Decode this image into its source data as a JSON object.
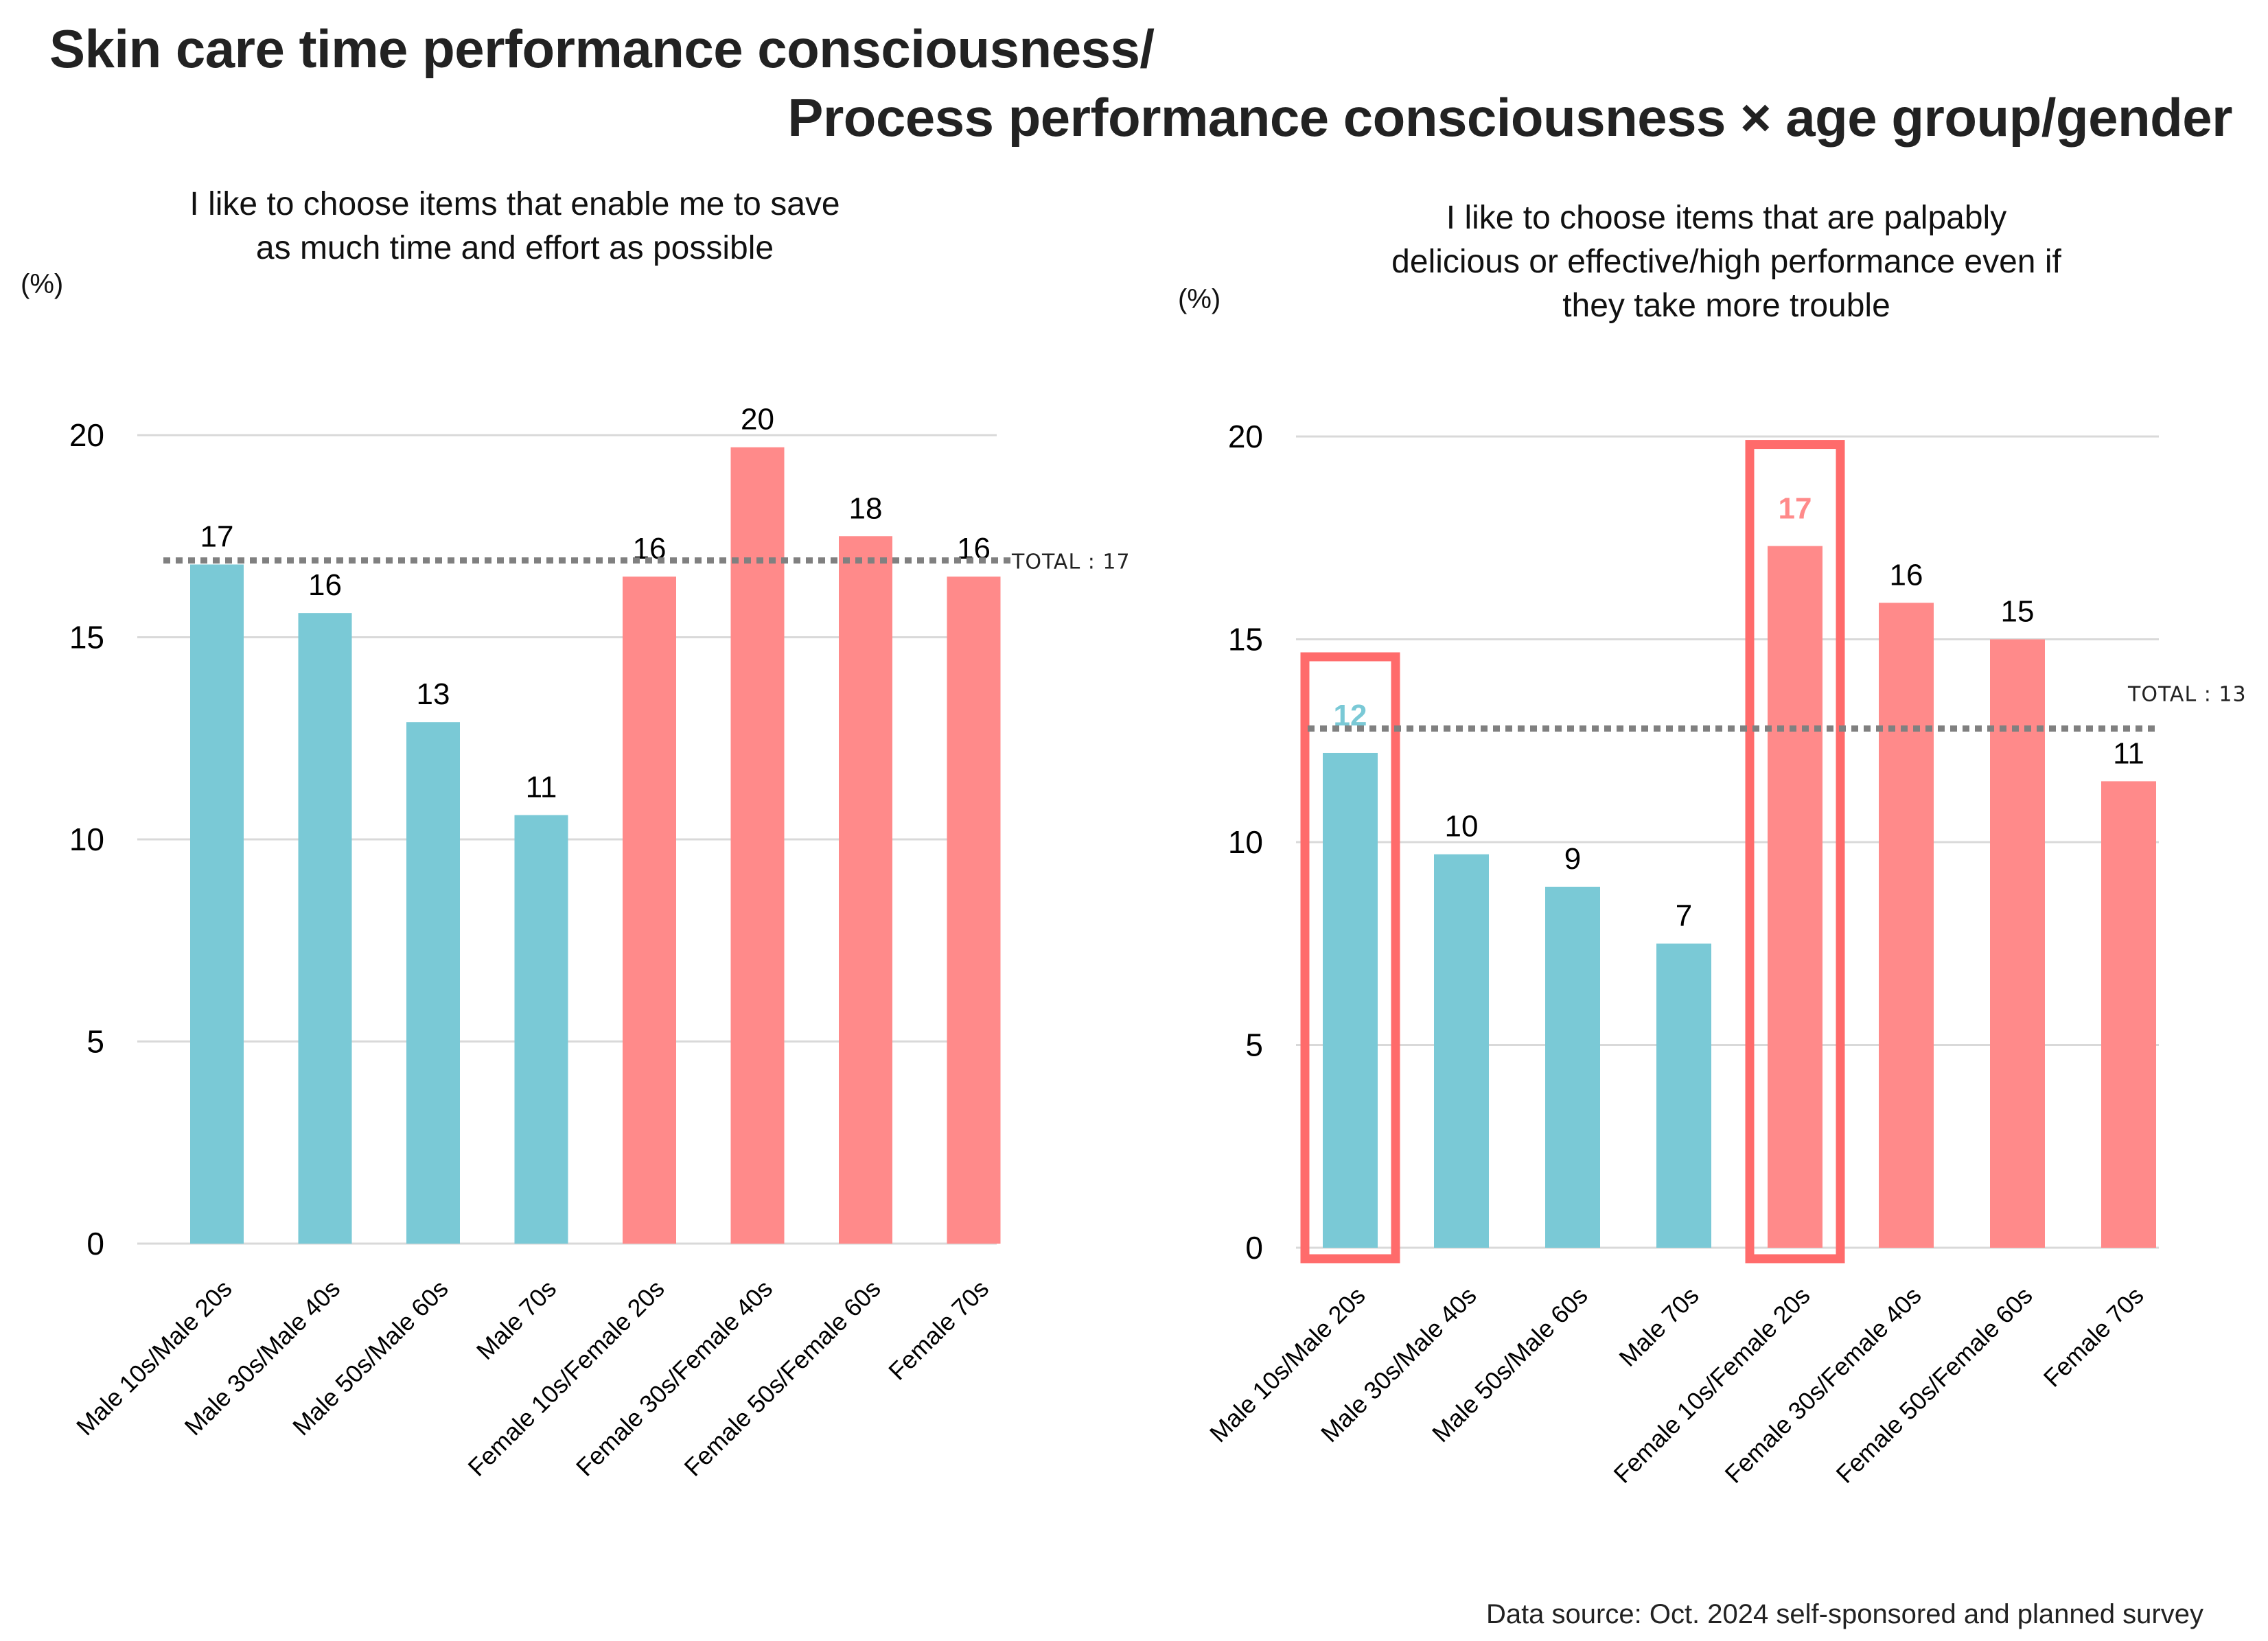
{
  "title": {
    "line1": "Skin care time performance consciousness/",
    "line2": "Process performance consciousness × age group/gender"
  },
  "source": "Data source: Oct. 2024 self-sponsored and planned survey",
  "colors": {
    "male": "#7ac9d6",
    "female": "#ff8a8a",
    "highlight_box": "#ff6b6b",
    "total_line": "#808080",
    "grid": "#d9d9d9",
    "text": "#000000"
  },
  "chart_data": [
    {
      "type": "bar",
      "title": "I like to choose items that enable me to save as much time and effort as possible",
      "title_lines": [
        "I like to choose items that enable me to save",
        "as much time and effort as possible"
      ],
      "ylabel": "(%)",
      "xlabel": "",
      "ylim": [
        0,
        20
      ],
      "yticks": [
        0,
        5,
        10,
        15,
        20
      ],
      "grid": true,
      "categories": [
        "Male 10s/Male 20s",
        "Male 30s/Male 40s",
        "Male 50s/Male 60s",
        "Male 70s",
        "Female 10s/Female 20s",
        "Female 30s/Female 40s",
        "Female 50s/Female 60s",
        "Female 70s"
      ],
      "values": [
        16.8,
        15.6,
        12.9,
        10.6,
        16.5,
        19.7,
        17.5,
        16.5
      ],
      "data_labels": [
        "17",
        "16",
        "13",
        "11",
        "16",
        "20",
        "18",
        "16"
      ],
      "groups": [
        "male",
        "male",
        "male",
        "male",
        "female",
        "female",
        "female",
        "female"
      ],
      "reference_line": {
        "label": "TOTAL : 17",
        "value": 16.9,
        "style": "dotted"
      },
      "highlighted": []
    },
    {
      "type": "bar",
      "title": "I like to choose items that are palpably delicious or effective/high performance even if they take more trouble",
      "title_lines": [
        "I like to choose items that are palpably",
        "delicious or effective/high performance even if",
        "they take more trouble"
      ],
      "ylabel": "(%)",
      "xlabel": "",
      "ylim": [
        0,
        20
      ],
      "yticks": [
        0,
        5,
        10,
        15,
        20
      ],
      "grid": true,
      "categories": [
        "Male 10s/Male 20s",
        "Male 30s/Male 40s",
        "Male 50s/Male 60s",
        "Male 70s",
        "Female 10s/Female 20s",
        "Female 30s/Female 40s",
        "Female 50s/Female 60s",
        "Female 70s"
      ],
      "values": [
        12.2,
        9.7,
        8.9,
        7.5,
        17.3,
        15.9,
        15.0,
        11.5
      ],
      "data_labels": [
        "12",
        "10",
        "9",
        "7",
        "17",
        "16",
        "15",
        "11"
      ],
      "groups": [
        "male",
        "male",
        "male",
        "male",
        "female",
        "female",
        "female",
        "female"
      ],
      "reference_line": {
        "label": "TOTAL : 13",
        "value": 12.8,
        "style": "dotted"
      },
      "highlighted": [
        0,
        4
      ]
    }
  ]
}
